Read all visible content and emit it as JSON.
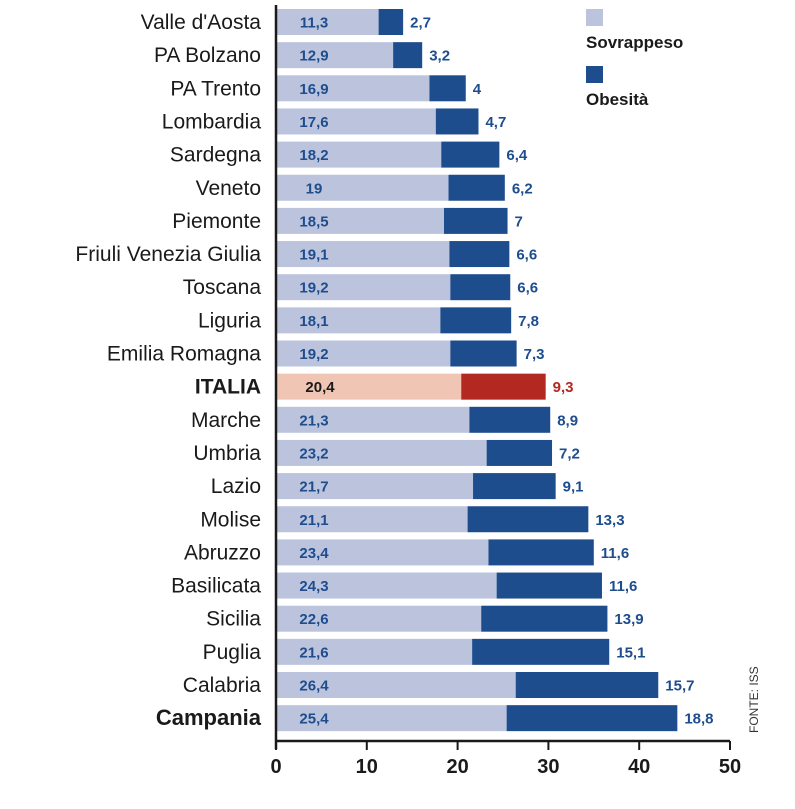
{
  "chart_data": {
    "type": "bar",
    "orientation": "horizontal",
    "stacked": true,
    "categories": [
      "Valle d'Aosta",
      "PA Bolzano",
      "PA Trento",
      "Lombardia",
      "Sardegna",
      "Veneto",
      "Piemonte",
      "Friuli Venezia Giulia",
      "Toscana",
      "Liguria",
      "Emilia Romagna",
      "ITALIA",
      "Marche",
      "Umbria",
      "Lazio",
      "Molise",
      "Abruzzo",
      "Basilicata",
      "Sicilia",
      "Puglia",
      "Calabria",
      "Campania"
    ],
    "category_styles": {
      "ITALIA": "bold",
      "Campania": "heavy"
    },
    "series": [
      {
        "name": "Sovrappeso",
        "color": "#bcc3dd",
        "values": [
          11.3,
          12.9,
          16.9,
          17.6,
          18.2,
          19,
          18.5,
          19.1,
          19.2,
          18.1,
          19.2,
          20.4,
          21.3,
          23.2,
          21.7,
          21.1,
          23.4,
          24.3,
          22.6,
          21.6,
          26.4,
          25.4
        ],
        "labels": [
          "11,3",
          "12,9",
          "16,9",
          "17,6",
          "18,2",
          "19",
          "18,5",
          "19,1",
          "19,2",
          "18,1",
          "19,2",
          "20,4",
          "21,3",
          "23,2",
          "21,7",
          "21,1",
          "23,4",
          "24,3",
          "22,6",
          "21,6",
          "26,4",
          "25,4"
        ]
      },
      {
        "name": "Obesità",
        "color": "#1e4d8e",
        "values": [
          2.7,
          3.2,
          4,
          4.7,
          6.4,
          6.2,
          7,
          6.6,
          6.6,
          7.8,
          7.3,
          9.3,
          8.9,
          7.2,
          9.1,
          13.3,
          11.6,
          11.6,
          13.9,
          15.1,
          15.7,
          18.8
        ],
        "labels": [
          "2,7",
          "3,2",
          "4",
          "4,7",
          "6,4",
          "6,2",
          "7",
          "6,6",
          "6,6",
          "7,8",
          "7,3",
          "9,3",
          "8,9",
          "7,2",
          "9,1",
          "13,3",
          "11,6",
          "11,6",
          "13,9",
          "15,1",
          "15,7",
          "18,8"
        ]
      }
    ],
    "highlight": {
      "category": "ITALIA",
      "colors": [
        "#f0c5b3",
        "#b32821"
      ],
      "label_colors": [
        "#1a1a1a",
        "#b32821"
      ]
    },
    "label_colors": [
      "#1e4d8e",
      "#1e4d8e"
    ],
    "xlim": [
      0,
      50
    ],
    "xticks": [
      0,
      10,
      20,
      30,
      40,
      50
    ],
    "legend": {
      "position": "top-right",
      "items": [
        "Sovrappeso",
        "Obesità"
      ]
    },
    "source": "FONTE: ISS",
    "grid": false
  }
}
